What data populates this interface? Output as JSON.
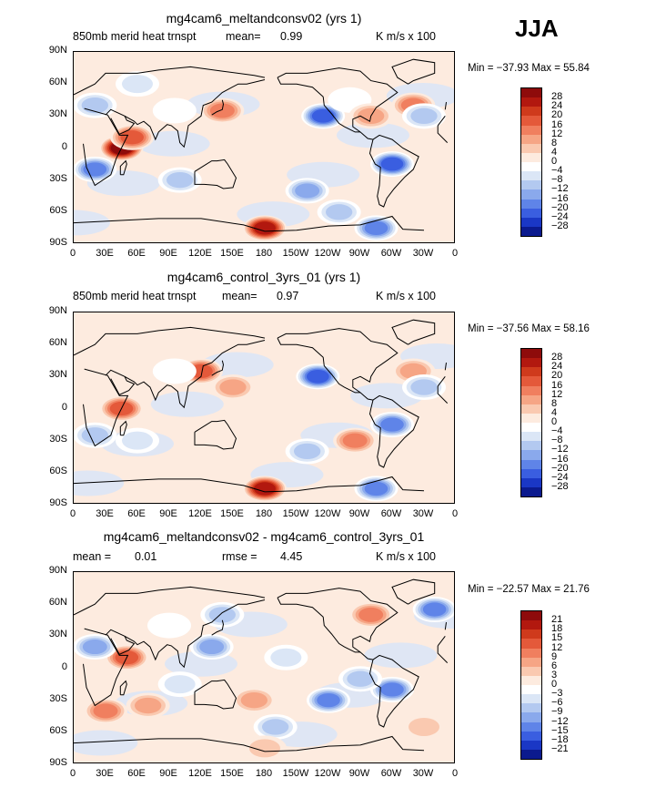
{
  "season": "JJA",
  "panels": [
    {
      "title": "mg4cam6_meltandconsv02 (yrs 1)",
      "sub_left": "850mb  merid  heat  trnspt",
      "mean_label": "mean=",
      "mean_value": "0.99",
      "units": "K  m/s  x  100",
      "minmax": "Min = −37.93  Max =   55.84",
      "colorbar_labels": [
        "28",
        "24",
        "20",
        "16",
        "12",
        "8",
        "4",
        "0",
        "−4",
        "−8",
        "−12",
        "−16",
        "−20",
        "−24",
        "−28"
      ]
    },
    {
      "title": "mg4cam6_control_3yrs_01 (yrs 1)",
      "sub_left": "850mb  merid  heat  trnspt",
      "mean_label": "mean=",
      "mean_value": "0.97",
      "units": "K  m/s  x  100",
      "minmax": "Min = −37.56  Max =   58.16",
      "colorbar_labels": [
        "28",
        "24",
        "20",
        "16",
        "12",
        "8",
        "4",
        "0",
        "−4",
        "−8",
        "−12",
        "−16",
        "−20",
        "−24",
        "−28"
      ]
    },
    {
      "title": "mg4cam6_meltandconsv02 - mg4cam6_control_3yrs_01",
      "mean_label": "mean =",
      "mean_value": "0.01",
      "rmse_label": "rmse =",
      "rmse_value": "4.45",
      "units": "K  m/s  x  100",
      "minmax": "Min = −22.57  Max =   21.76",
      "colorbar_labels": [
        "21",
        "18",
        "15",
        "12",
        "9",
        "6",
        "3",
        "0",
        "−3",
        "−6",
        "−9",
        "−12",
        "−15",
        "−18",
        "−21"
      ]
    }
  ],
  "lat_labels": [
    "90N",
    "60N",
    "30N",
    "0",
    "30S",
    "60S",
    "90S"
  ],
  "lon_labels": [
    "0",
    "30E",
    "60E",
    "90E",
    "120E",
    "150E",
    "180",
    "150W",
    "120W",
    "90W",
    "60W",
    "30W",
    "0"
  ],
  "colorbar_colors": [
    "#8e0b0b",
    "#b2180f",
    "#cf3a1c",
    "#e4593a",
    "#f07f5f",
    "#f6a585",
    "#fac9b0",
    "#fdebdf",
    "#ffffff",
    "#dbe6f6",
    "#b3c9f0",
    "#8aa9ec",
    "#5f84e8",
    "#3a5ee0",
    "#1a37c5",
    "#0b1a8e"
  ],
  "chart_data": [
    {
      "type": "heatmap",
      "title": "mg4cam6_meltandconsv02 (yrs 1)",
      "variable": "850mb merid heat trnspt",
      "units": "K m/s x 100",
      "mean": 0.99,
      "min": -37.93,
      "max": 55.84,
      "contour_levels": [
        -28,
        -24,
        -20,
        -16,
        -12,
        -8,
        -4,
        0,
        4,
        8,
        12,
        16,
        20,
        24,
        28
      ],
      "x_range": [
        "0",
        "0"
      ],
      "y_range": [
        "90S",
        "90N"
      ],
      "blobs": [
        {
          "lon": 45,
          "lat": 0,
          "v": 30
        },
        {
          "lon": 55,
          "lat": 10,
          "v": 20
        },
        {
          "lon": 20,
          "lat": -20,
          "v": -20
        },
        {
          "lon": 95,
          "lat": 35,
          "v": 0
        },
        {
          "lon": 140,
          "lat": 35,
          "v": 16
        },
        {
          "lon": 180,
          "lat": -75,
          "v": 28
        },
        {
          "lon": -125,
          "lat": 30,
          "v": -24
        },
        {
          "lon": -100,
          "lat": 45,
          "v": 0
        },
        {
          "lon": -60,
          "lat": -15,
          "v": -22
        },
        {
          "lon": -140,
          "lat": -40,
          "v": -16
        },
        {
          "lon": -110,
          "lat": -60,
          "v": -12
        },
        {
          "lon": -40,
          "lat": 40,
          "v": 16
        },
        {
          "lon": -30,
          "lat": 30,
          "v": -12
        },
        {
          "lon": 100,
          "lat": -30,
          "v": -12
        },
        {
          "lon": 60,
          "lat": 60,
          "v": -8
        },
        {
          "lon": -80,
          "lat": 30,
          "v": 12
        },
        {
          "lon": 20,
          "lat": 40,
          "v": -12
        },
        {
          "lon": -75,
          "lat": -75,
          "v": -20
        }
      ]
    },
    {
      "type": "heatmap",
      "title": "mg4cam6_control_3yrs_01 (yrs 1)",
      "variable": "850mb merid heat trnspt",
      "units": "K m/s x 100",
      "mean": 0.97,
      "min": -37.56,
      "max": 58.16,
      "contour_levels": [
        -28,
        -24,
        -20,
        -16,
        -12,
        -8,
        -4,
        0,
        4,
        8,
        12,
        16,
        20,
        24,
        28
      ],
      "x_range": [
        "0",
        "0"
      ],
      "y_range": [
        "90S",
        "90N"
      ],
      "blobs": [
        {
          "lon": 45,
          "lat": 0,
          "v": 20
        },
        {
          "lon": 120,
          "lat": 35,
          "v": 20
        },
        {
          "lon": 95,
          "lat": 35,
          "v": 0
        },
        {
          "lon": 180,
          "lat": -75,
          "v": 28
        },
        {
          "lon": -130,
          "lat": 30,
          "v": -24
        },
        {
          "lon": -60,
          "lat": -15,
          "v": -18
        },
        {
          "lon": -140,
          "lat": -40,
          "v": -12
        },
        {
          "lon": -95,
          "lat": -30,
          "v": 16
        },
        {
          "lon": -40,
          "lat": 35,
          "v": 12
        },
        {
          "lon": -30,
          "lat": 20,
          "v": -12
        },
        {
          "lon": 60,
          "lat": -30,
          "v": -8
        },
        {
          "lon": -75,
          "lat": -75,
          "v": -20
        },
        {
          "lon": 150,
          "lat": 20,
          "v": 12
        },
        {
          "lon": 20,
          "lat": -25,
          "v": -12
        }
      ]
    },
    {
      "type": "heatmap",
      "title": "mg4cam6_meltandconsv02 - mg4cam6_control_3yrs_01",
      "units": "K m/s x 100",
      "mean": 0.01,
      "rmse": 4.45,
      "min": -22.57,
      "max": 21.76,
      "contour_levels": [
        -21,
        -18,
        -15,
        -12,
        -9,
        -6,
        -3,
        0,
        3,
        6,
        9,
        12,
        15,
        18,
        21
      ],
      "x_range": [
        "0",
        "0"
      ],
      "y_range": [
        "90S",
        "90N"
      ],
      "blobs": [
        {
          "lon": 50,
          "lat": 10,
          "v": 15
        },
        {
          "lon": 20,
          "lat": 20,
          "v": -12
        },
        {
          "lon": 90,
          "lat": 40,
          "v": 0
        },
        {
          "lon": 130,
          "lat": 20,
          "v": -12
        },
        {
          "lon": 140,
          "lat": 50,
          "v": -9
        },
        {
          "lon": -120,
          "lat": -30,
          "v": -15
        },
        {
          "lon": -60,
          "lat": -20,
          "v": -15
        },
        {
          "lon": -90,
          "lat": -10,
          "v": -9
        },
        {
          "lon": -20,
          "lat": 55,
          "v": -15
        },
        {
          "lon": 30,
          "lat": -40,
          "v": 12
        },
        {
          "lon": 70,
          "lat": -35,
          "v": 9
        },
        {
          "lon": 170,
          "lat": -30,
          "v": 9
        },
        {
          "lon": -160,
          "lat": 10,
          "v": -6
        },
        {
          "lon": -80,
          "lat": 50,
          "v": 12
        },
        {
          "lon": 100,
          "lat": -15,
          "v": -6
        },
        {
          "lon": -30,
          "lat": -55,
          "v": 6
        },
        {
          "lon": -170,
          "lat": -55,
          "v": -9
        },
        {
          "lon": 180,
          "lat": -75,
          "v": 6
        }
      ]
    }
  ]
}
